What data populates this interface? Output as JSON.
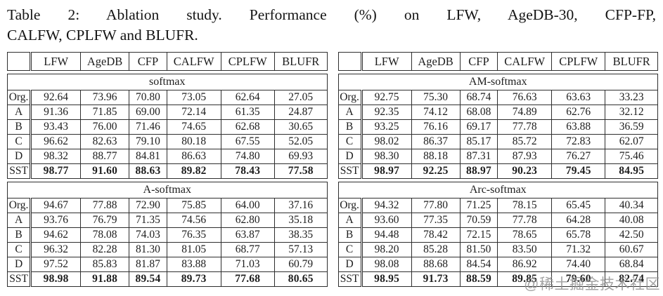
{
  "caption": {
    "line1": "Table 2: Ablation study. Performance (%) on LFW, AgeDB-30, CFP-FP,",
    "line2": "CALFW, CPLFW and BLUFR.",
    "full_text": "Table 2: Ablation study. Performance (%) on LFW, AgeDB-30, CFP-FP, CALFW, CPLFW and BLUFR."
  },
  "columns_header": [
    "",
    "LFW",
    "AgeDB",
    "CFP",
    "CALFW",
    "CPLFW",
    "BLUFR"
  ],
  "row_labels": [
    "Org.",
    "A",
    "B",
    "C",
    "D",
    "SST"
  ],
  "tables": [
    {
      "section": "softmax",
      "rows": [
        {
          "label": "Org.",
          "values": [
            "92.64",
            "73.96",
            "70.80",
            "73.05",
            "62.64",
            "27.05"
          ],
          "bold": false
        },
        {
          "label": "A",
          "values": [
            "91.36",
            "71.85",
            "69.00",
            "72.14",
            "61.35",
            "24.87"
          ],
          "bold": false
        },
        {
          "label": "B",
          "values": [
            "93.43",
            "76.00",
            "71.46",
            "74.65",
            "62.68",
            "30.65"
          ],
          "bold": false
        },
        {
          "label": "C",
          "values": [
            "96.62",
            "82.63",
            "79.10",
            "80.18",
            "67.55",
            "52.05"
          ],
          "bold": false
        },
        {
          "label": "D",
          "values": [
            "98.32",
            "88.77",
            "84.81",
            "86.63",
            "74.80",
            "69.93"
          ],
          "bold": false
        },
        {
          "label": "SST",
          "values": [
            "98.77",
            "91.60",
            "88.63",
            "89.82",
            "78.43",
            "77.58"
          ],
          "bold": true
        }
      ]
    },
    {
      "section": "A-softmax",
      "rows": [
        {
          "label": "Org.",
          "values": [
            "94.67",
            "77.88",
            "72.90",
            "75.85",
            "64.00",
            "37.16"
          ],
          "bold": false
        },
        {
          "label": "A",
          "values": [
            "93.76",
            "76.79",
            "71.35",
            "74.56",
            "62.80",
            "35.18"
          ],
          "bold": false
        },
        {
          "label": "B",
          "values": [
            "94.62",
            "78.08",
            "74.03",
            "76.35",
            "63.87",
            "38.35"
          ],
          "bold": false
        },
        {
          "label": "C",
          "values": [
            "96.32",
            "82.28",
            "81.30",
            "81.05",
            "68.77",
            "57.13"
          ],
          "bold": false
        },
        {
          "label": "D",
          "values": [
            "97.52",
            "85.83",
            "81.87",
            "83.88",
            "71.03",
            "60.79"
          ],
          "bold": false
        },
        {
          "label": "SST",
          "values": [
            "98.98",
            "91.88",
            "89.54",
            "89.73",
            "77.68",
            "80.65"
          ],
          "bold": true
        }
      ]
    },
    {
      "section": "AM-softmax",
      "rows": [
        {
          "label": "Org.",
          "values": [
            "92.75",
            "75.30",
            "68.74",
            "76.63",
            "63.63",
            "33.23"
          ],
          "bold": false
        },
        {
          "label": "A",
          "values": [
            "92.35",
            "74.12",
            "68.08",
            "74.89",
            "62.76",
            "32.12"
          ],
          "bold": false
        },
        {
          "label": "B",
          "values": [
            "93.25",
            "76.16",
            "69.17",
            "77.78",
            "63.88",
            "36.59"
          ],
          "bold": false
        },
        {
          "label": "C",
          "values": [
            "98.02",
            "86.37",
            "85.17",
            "85.72",
            "72.83",
            "62.07"
          ],
          "bold": false
        },
        {
          "label": "D",
          "values": [
            "98.30",
            "88.18",
            "87.31",
            "87.93",
            "76.27",
            "75.46"
          ],
          "bold": false
        },
        {
          "label": "SST",
          "values": [
            "98.97",
            "92.25",
            "88.97",
            "90.23",
            "79.45",
            "84.95"
          ],
          "bold": true
        }
      ]
    },
    {
      "section": "Arc-softmax",
      "rows": [
        {
          "label": "Org.",
          "values": [
            "94.32",
            "77.80",
            "71.25",
            "78.15",
            "65.45",
            "40.34"
          ],
          "bold": false
        },
        {
          "label": "A",
          "values": [
            "93.60",
            "77.35",
            "70.59",
            "77.78",
            "64.28",
            "40.08"
          ],
          "bold": false
        },
        {
          "label": "B",
          "values": [
            "94.48",
            "78.42",
            "72.15",
            "78.65",
            "65.78",
            "42.50"
          ],
          "bold": false
        },
        {
          "label": "C",
          "values": [
            "98.20",
            "85.28",
            "81.50",
            "83.50",
            "71.32",
            "60.67"
          ],
          "bold": false
        },
        {
          "label": "D",
          "values": [
            "98.08",
            "88.68",
            "84.54",
            "86.92",
            "74.40",
            "68.84"
          ],
          "bold": false
        },
        {
          "label": "SST",
          "values": [
            "98.95",
            "91.73",
            "88.59",
            "89.85",
            "79.60",
            "82.74"
          ],
          "bold": true
        }
      ]
    }
  ],
  "watermark": {
    "text": "@稀土掘金技术社区"
  },
  "colors": {
    "background": "#ffffff",
    "text": "#1d1d1d",
    "border": "#2e2e2e",
    "watermark": "#8f8f8f"
  }
}
